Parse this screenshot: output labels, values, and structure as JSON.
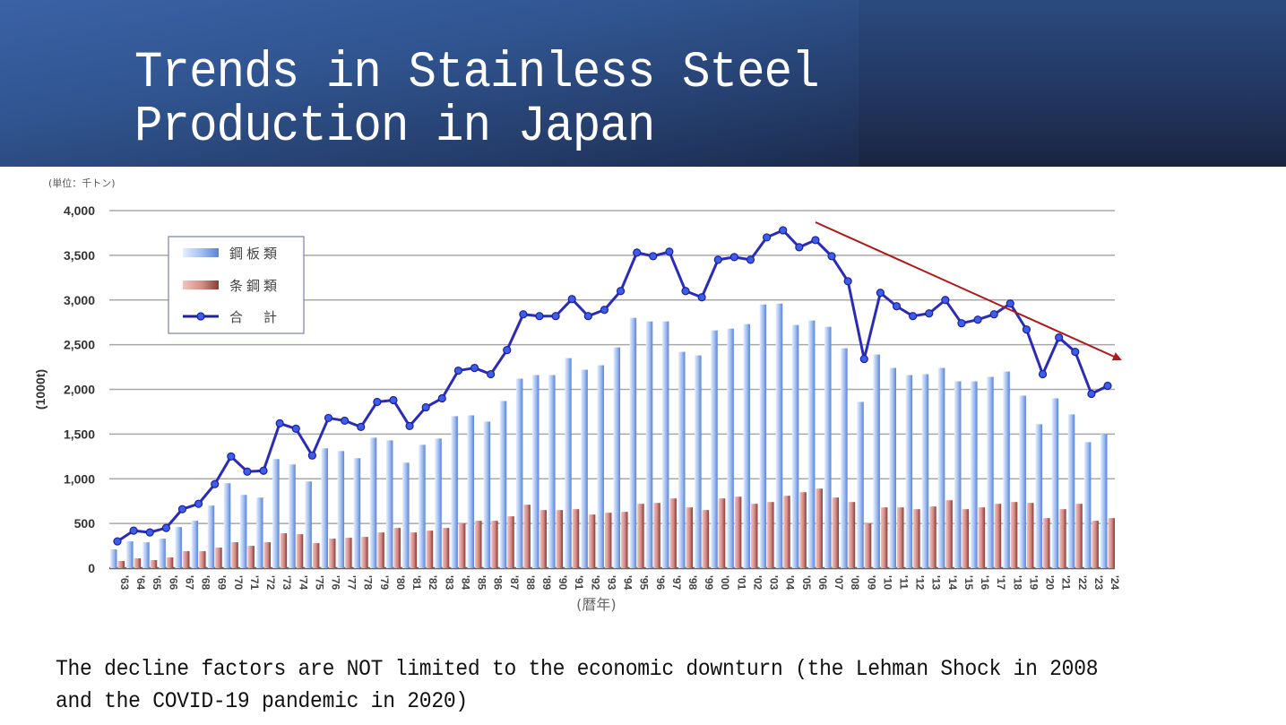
{
  "slide": {
    "title_line1": "Trends in Stainless Steel",
    "title_line2": "Production in Japan",
    "caption_line1": "The decline factors are NOT limited to the economic downturn (the Lehman Shock in 2008",
    "caption_line2": "and the COVID-19 pandemic in 2020)",
    "colors": {
      "header_dark": "#1a2440",
      "header_light": "#3a62a6",
      "plate_bar": "#8fb4ec",
      "bar_steel": "#c98680",
      "total_line": "#2b2bb8",
      "trend_arrow": "#b01818"
    }
  },
  "chart_data": {
    "type": "bar",
    "title": "",
    "unit_note": "(単位：千トン)",
    "xlabel": "(暦年)",
    "ylabel": "(1000t)",
    "ylim": [
      0,
      4000
    ],
    "yticks": [
      0,
      500,
      1000,
      1500,
      2000,
      2500,
      3000,
      3500,
      4000
    ],
    "ytick_labels": [
      "0",
      "500",
      "1,000",
      "1,500",
      "2,000",
      "2,500",
      "3,000",
      "3,500",
      "4,000"
    ],
    "grid": true,
    "legend_position": "top-left",
    "categories": [
      "'63",
      "'64",
      "'65",
      "'66",
      "'67",
      "'68",
      "'69",
      "'70",
      "'71",
      "'72",
      "'73",
      "'74",
      "'75",
      "'76",
      "'77",
      "'78",
      "'79",
      "'80",
      "'81",
      "'82",
      "'83",
      "'84",
      "'85",
      "'86",
      "'87",
      "'88",
      "'89",
      "'90",
      "'91",
      "'92",
      "'93",
      "'94",
      "'95",
      "'96",
      "'97",
      "'98",
      "'99",
      "'00",
      "'01",
      "'02",
      "'03",
      "'04",
      "'05",
      "'06",
      "'07",
      "'08",
      "'09",
      "'10",
      "'11",
      "'12",
      "'13",
      "'14",
      "'15",
      "'16",
      "'17",
      "'18",
      "'19",
      "'20",
      "'21",
      "'22",
      "'23",
      "'24"
    ],
    "series": [
      {
        "name": "鋼板類",
        "type": "bar",
        "values": [
          210,
          300,
          290,
          330,
          460,
          530,
          700,
          950,
          820,
          790,
          1220,
          1160,
          970,
          1340,
          1310,
          1230,
          1460,
          1430,
          1180,
          1380,
          1450,
          1700,
          1710,
          1640,
          1870,
          2120,
          2160,
          2160,
          2350,
          2220,
          2270,
          2470,
          2800,
          2760,
          2760,
          2420,
          2380,
          2660,
          2680,
          2730,
          2950,
          2960,
          2720,
          2770,
          2700,
          2460,
          1860,
          2390,
          2240,
          2160,
          2170,
          2240,
          2090,
          2090,
          2140,
          2200,
          1930,
          1610,
          1900,
          1720,
          1410,
          1500
        ]
      },
      {
        "name": "条鋼類",
        "type": "bar",
        "values": [
          80,
          110,
          90,
          120,
          190,
          190,
          230,
          290,
          250,
          290,
          390,
          380,
          280,
          330,
          340,
          350,
          400,
          450,
          400,
          420,
          450,
          500,
          530,
          530,
          580,
          710,
          650,
          650,
          660,
          600,
          620,
          630,
          720,
          730,
          780,
          680,
          650,
          780,
          800,
          720,
          740,
          810,
          850,
          890,
          790,
          740,
          500,
          680,
          680,
          660,
          690,
          760,
          660,
          680,
          720,
          740,
          730,
          560,
          660,
          720,
          530,
          560
        ]
      },
      {
        "name": "合　計",
        "type": "line",
        "values": [
          300,
          420,
          400,
          450,
          660,
          720,
          940,
          1250,
          1080,
          1090,
          1620,
          1560,
          1260,
          1680,
          1650,
          1580,
          1860,
          1880,
          1590,
          1800,
          1900,
          2210,
          2240,
          2170,
          2440,
          2840,
          2820,
          2820,
          3010,
          2820,
          2890,
          3100,
          3530,
          3490,
          3540,
          3100,
          3030,
          3450,
          3480,
          3450,
          3700,
          3780,
          3590,
          3670,
          3490,
          3210,
          2340,
          3080,
          2930,
          2820,
          2850,
          3000,
          2740,
          2780,
          2840,
          2960,
          2670,
          2170,
          2580,
          2420,
          1950,
          2040
        ]
      }
    ],
    "annotations": [
      {
        "type": "arrow",
        "description": "downward trend arrow",
        "from": {
          "x": "'06",
          "y": 3900
        },
        "to": {
          "x": "past '24",
          "y": 2330
        }
      }
    ]
  }
}
